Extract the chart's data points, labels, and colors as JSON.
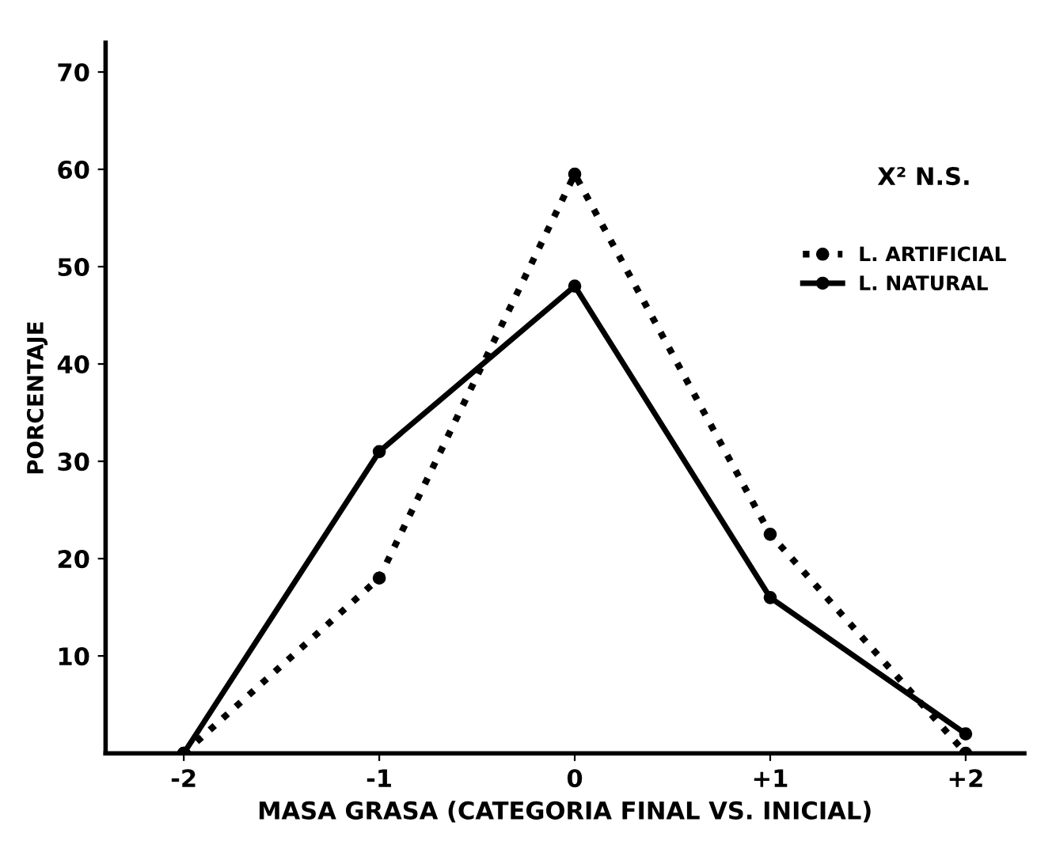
{
  "chart_data": {
    "type": "line",
    "xlabel": "MASA GRASA (CATEGORIA FINAL VS. INICIAL)",
    "ylabel": "PORCENTAJE",
    "x": [
      -2,
      -1,
      0,
      1,
      2
    ],
    "series": [
      {
        "name": "L. ARTIFICIAL",
        "color": "#000000",
        "line_style": "dotted",
        "values": [
          0,
          18,
          59.5,
          22.5,
          0
        ]
      },
      {
        "name": "L. NATURAL",
        "color": "#000000",
        "line_style": "solid",
        "values": [
          0,
          31,
          48,
          16,
          2
        ]
      }
    ],
    "marker": "circle",
    "xlim": [
      -2.4,
      2.3
    ],
    "ylim": [
      0,
      73
    ],
    "xticks": [
      -2,
      -1,
      0,
      {
        "value": 1,
        "label": "+1"
      },
      {
        "value": 2,
        "label": "+2"
      }
    ],
    "yticks": [
      10,
      20,
      30,
      40,
      50,
      60,
      70
    ],
    "annotations": [
      "X² N.S."
    ],
    "legend": "right",
    "grid": false
  }
}
